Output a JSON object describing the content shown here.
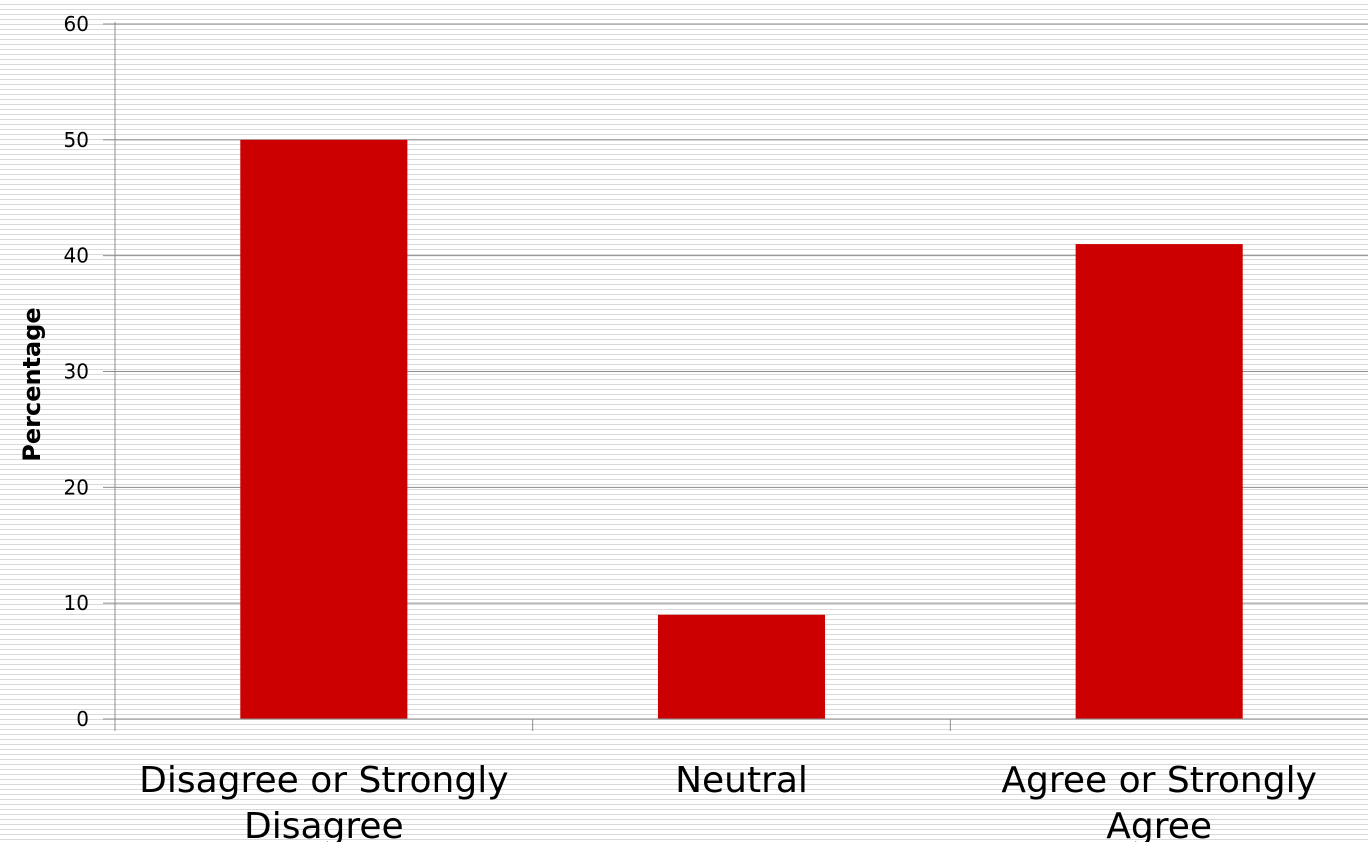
{
  "chart_data": {
    "type": "bar",
    "title": "",
    "xlabel": "",
    "ylabel": "Percentage",
    "categories": [
      [
        "Disagree or Strongly",
        "Disagree"
      ],
      [
        "Neutral"
      ],
      [
        "Agree or Strongly",
        "Agree"
      ]
    ],
    "values": [
      50,
      9,
      41
    ],
    "ylim": [
      0,
      60
    ],
    "yticks": [
      0,
      10,
      20,
      30,
      40,
      50,
      60
    ],
    "grid": true,
    "legend": "none",
    "bar_color": "#cc0000",
    "gridline_color": "#8c8c8c"
  }
}
